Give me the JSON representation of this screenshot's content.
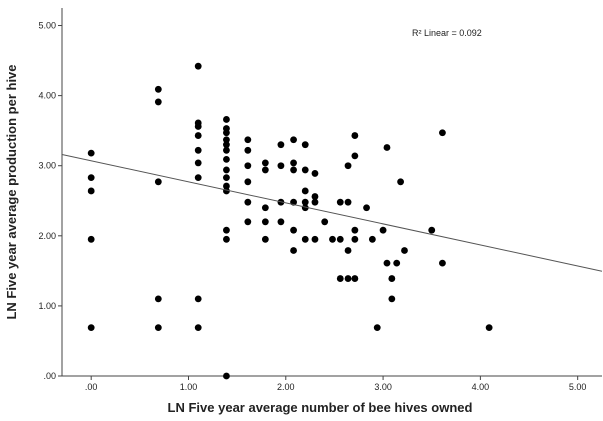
{
  "chart_data": {
    "type": "scatter",
    "title": "",
    "xlabel": "LN Five year average number of bee hives owned",
    "ylabel": "LN Five year average production per hive",
    "xlim": [
      -0.3,
      5.25
    ],
    "ylim": [
      0,
      5.25
    ],
    "x_ticks": [
      0,
      1,
      2,
      3,
      4,
      5
    ],
    "x_tick_labels": [
      ".00",
      "1.00",
      "2.00",
      "3.00",
      "4.00",
      "5.00"
    ],
    "y_ticks": [
      0,
      1,
      2,
      3,
      4,
      5
    ],
    "y_tick_labels": [
      ".00",
      "1.00",
      "2.00",
      "3.00",
      "4.00",
      "5.00"
    ],
    "grid": false,
    "legend": "none",
    "marker_color": "#000000",
    "fit_line": {
      "type": "linear",
      "intercept": 3.07,
      "slope": -0.3
    },
    "annotation": "R² Linear = 0.092",
    "points": [
      {
        "x": 0.0,
        "y": 3.18
      },
      {
        "x": 0.0,
        "y": 2.83
      },
      {
        "x": 0.0,
        "y": 2.64
      },
      {
        "x": 0.0,
        "y": 1.95
      },
      {
        "x": 0.0,
        "y": 0.69
      },
      {
        "x": 0.69,
        "y": 4.09
      },
      {
        "x": 0.69,
        "y": 3.91
      },
      {
        "x": 0.69,
        "y": 2.77
      },
      {
        "x": 0.69,
        "y": 1.1
      },
      {
        "x": 0.69,
        "y": 0.69
      },
      {
        "x": 1.1,
        "y": 4.42
      },
      {
        "x": 1.1,
        "y": 3.61
      },
      {
        "x": 1.1,
        "y": 3.56
      },
      {
        "x": 1.1,
        "y": 3.43
      },
      {
        "x": 1.1,
        "y": 3.22
      },
      {
        "x": 1.1,
        "y": 3.04
      },
      {
        "x": 1.1,
        "y": 2.83
      },
      {
        "x": 1.1,
        "y": 1.1
      },
      {
        "x": 1.1,
        "y": 0.69
      },
      {
        "x": 1.39,
        "y": 3.66
      },
      {
        "x": 1.39,
        "y": 3.53
      },
      {
        "x": 1.39,
        "y": 3.47
      },
      {
        "x": 1.39,
        "y": 3.37
      },
      {
        "x": 1.39,
        "y": 3.3
      },
      {
        "x": 1.39,
        "y": 3.22
      },
      {
        "x": 1.39,
        "y": 3.09
      },
      {
        "x": 1.39,
        "y": 2.94
      },
      {
        "x": 1.39,
        "y": 2.83
      },
      {
        "x": 1.39,
        "y": 2.71
      },
      {
        "x": 1.39,
        "y": 2.64
      },
      {
        "x": 1.39,
        "y": 2.08
      },
      {
        "x": 1.39,
        "y": 1.95
      },
      {
        "x": 1.39,
        "y": 0.0
      },
      {
        "x": 1.61,
        "y": 3.37
      },
      {
        "x": 1.61,
        "y": 3.22
      },
      {
        "x": 1.61,
        "y": 3.0
      },
      {
        "x": 1.61,
        "y": 2.77
      },
      {
        "x": 1.61,
        "y": 2.48
      },
      {
        "x": 1.61,
        "y": 2.2
      },
      {
        "x": 1.79,
        "y": 3.04
      },
      {
        "x": 1.79,
        "y": 2.94
      },
      {
        "x": 1.79,
        "y": 2.4
      },
      {
        "x": 1.79,
        "y": 2.2
      },
      {
        "x": 1.79,
        "y": 1.95
      },
      {
        "x": 1.95,
        "y": 3.3
      },
      {
        "x": 1.95,
        "y": 3.0
      },
      {
        "x": 1.95,
        "y": 2.48
      },
      {
        "x": 1.95,
        "y": 2.2
      },
      {
        "x": 2.08,
        "y": 3.37
      },
      {
        "x": 2.08,
        "y": 3.04
      },
      {
        "x": 2.08,
        "y": 2.94
      },
      {
        "x": 2.08,
        "y": 2.48
      },
      {
        "x": 2.08,
        "y": 2.08
      },
      {
        "x": 2.08,
        "y": 1.79
      },
      {
        "x": 2.2,
        "y": 3.3
      },
      {
        "x": 2.2,
        "y": 2.94
      },
      {
        "x": 2.2,
        "y": 2.64
      },
      {
        "x": 2.2,
        "y": 2.48
      },
      {
        "x": 2.2,
        "y": 2.4
      },
      {
        "x": 2.2,
        "y": 1.95
      },
      {
        "x": 2.3,
        "y": 2.89
      },
      {
        "x": 2.3,
        "y": 2.56
      },
      {
        "x": 2.3,
        "y": 2.48
      },
      {
        "x": 2.3,
        "y": 1.95
      },
      {
        "x": 2.4,
        "y": 2.2
      },
      {
        "x": 2.48,
        "y": 1.95
      },
      {
        "x": 2.56,
        "y": 2.48
      },
      {
        "x": 2.56,
        "y": 1.95
      },
      {
        "x": 2.56,
        "y": 1.39
      },
      {
        "x": 2.64,
        "y": 3.0
      },
      {
        "x": 2.64,
        "y": 2.48
      },
      {
        "x": 2.64,
        "y": 1.79
      },
      {
        "x": 2.64,
        "y": 1.39
      },
      {
        "x": 2.71,
        "y": 3.43
      },
      {
        "x": 2.71,
        "y": 3.14
      },
      {
        "x": 2.71,
        "y": 2.08
      },
      {
        "x": 2.71,
        "y": 1.95
      },
      {
        "x": 2.71,
        "y": 1.39
      },
      {
        "x": 2.83,
        "y": 2.4
      },
      {
        "x": 2.89,
        "y": 1.95
      },
      {
        "x": 2.94,
        "y": 0.69
      },
      {
        "x": 3.0,
        "y": 2.08
      },
      {
        "x": 3.04,
        "y": 3.26
      },
      {
        "x": 3.04,
        "y": 1.61
      },
      {
        "x": 3.09,
        "y": 1.39
      },
      {
        "x": 3.09,
        "y": 1.1
      },
      {
        "x": 3.14,
        "y": 1.61
      },
      {
        "x": 3.18,
        "y": 2.77
      },
      {
        "x": 3.22,
        "y": 1.79
      },
      {
        "x": 3.5,
        "y": 2.08
      },
      {
        "x": 3.61,
        "y": 3.47
      },
      {
        "x": 3.61,
        "y": 1.61
      },
      {
        "x": 4.09,
        "y": 0.69
      }
    ]
  }
}
